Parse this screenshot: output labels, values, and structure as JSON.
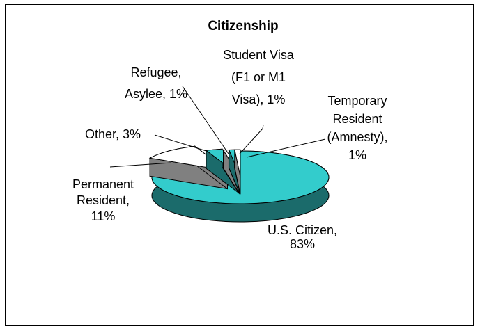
{
  "chart_data": {
    "type": "pie",
    "style": "3d-exploded",
    "title": "Citizenship",
    "categories": [
      "U.S. Citizen",
      "Permanent Resident",
      "Other",
      "Refugee, Asylee",
      "Student Visa (F1 or M1 Visa)",
      "Temporary Resident (Amnesty)"
    ],
    "values": [
      83,
      11,
      3,
      1,
      1,
      1
    ],
    "unit": "%",
    "legend": "none",
    "slices": [
      {
        "name": "U.S. Citizen",
        "value": 83,
        "top_color": "#33CCCC",
        "side_color": "#1B6B6B",
        "label_lines": [
          "U.S. Citizen,",
          "83%"
        ]
      },
      {
        "name": "Permanent Resident",
        "value": 11,
        "top_color": "#FFFFFF",
        "side_color": "#808080",
        "label_lines": [
          "Permanent",
          "Resident,",
          "11%"
        ]
      },
      {
        "name": "Other",
        "value": 3,
        "top_color": "#33CCCC",
        "side_color": "#1B6B6B",
        "label_lines": [
          "Other, 3%"
        ]
      },
      {
        "name": "Refugee, Asylee",
        "value": 1,
        "top_color": "#FFFFFF",
        "side_color": "#808080",
        "label_lines": [
          "Refugee,",
          "Asylee, 1%"
        ]
      },
      {
        "name": "Student Visa (F1 or M1 Visa)",
        "value": 1,
        "top_color": "#33CCCC",
        "side_color": "#1B6B6B",
        "label_lines": [
          "Student Visa",
          "(F1 or M1",
          "Visa), 1%"
        ]
      },
      {
        "name": "Temporary Resident (Amnesty)",
        "value": 1,
        "top_color": "#FFFFFF",
        "side_color": "#808080",
        "label_lines": [
          "Temporary",
          "Resident",
          "(Amnesty),",
          "1%"
        ]
      }
    ]
  }
}
